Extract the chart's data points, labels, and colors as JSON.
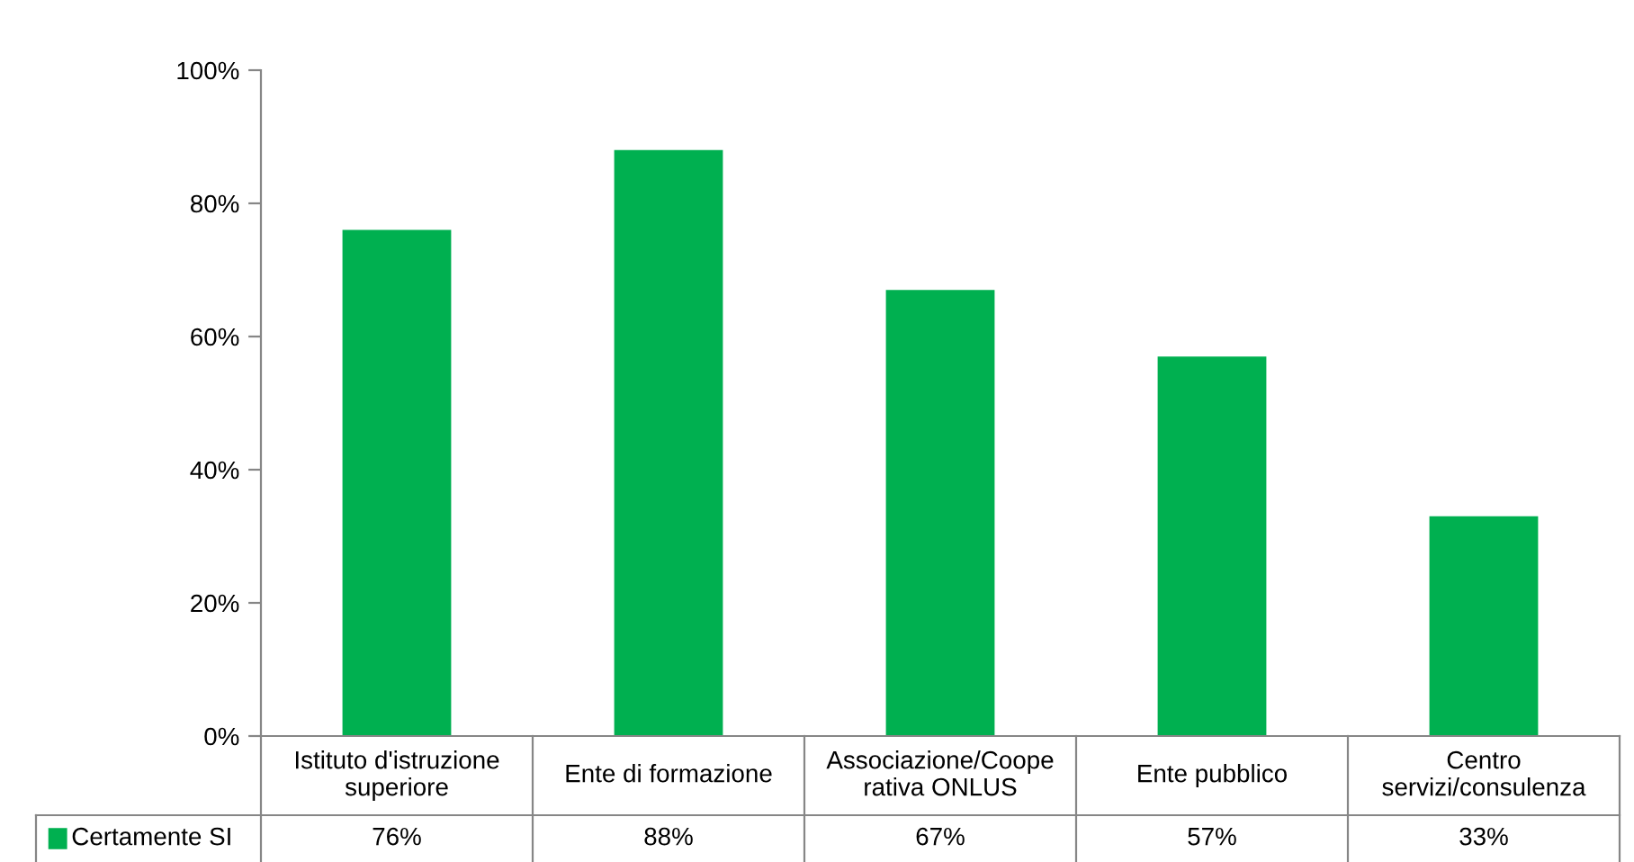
{
  "chart_data": {
    "type": "bar",
    "categories": [
      "Istituto d'istruzione superiore",
      "Ente di formazione",
      "Associazione/Coope rativa ONLUS",
      "Ente pubblico",
      "Centro servizi/consulenza"
    ],
    "series": [
      {
        "name": "Certamente SI",
        "color": "#00b050",
        "values": [
          76,
          88,
          67,
          57,
          33
        ],
        "value_labels": [
          "76%",
          "88%",
          "67%",
          "57%",
          "33%"
        ]
      }
    ],
    "ylim": [
      0,
      100
    ],
    "yticks": [
      {
        "value": 0,
        "label": "0%"
      },
      {
        "value": 20,
        "label": "20%"
      },
      {
        "value": 40,
        "label": "40%"
      },
      {
        "value": 60,
        "label": "60%"
      },
      {
        "value": 80,
        "label": "80%"
      },
      {
        "value": 100,
        "label": "100%"
      }
    ],
    "grid": false,
    "legend": "bottom"
  }
}
